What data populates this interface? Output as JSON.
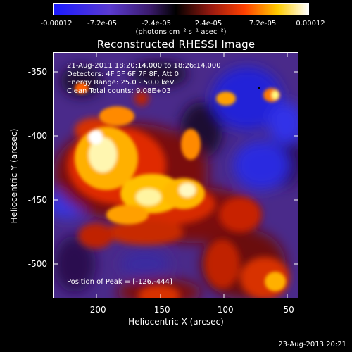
{
  "colorbar": {
    "ticks": [
      "-0.00012",
      "-7.2e-05",
      "-2.4e-05",
      "2.4e-05",
      "7.2e-05",
      "0.00012"
    ],
    "unit_label": "(photons cm⁻² s⁻¹ asec⁻²)",
    "colors": [
      "#1a1aff",
      "#6a2ab8",
      "#2a1050",
      "#000000",
      "#8a1a10",
      "#ff3a00",
      "#ffcc00",
      "#ffffff"
    ]
  },
  "title": "Reconstructed RHESSI Image",
  "info": {
    "line1": "21-Aug-2011 18:20:14.000 to 18:26:14.000",
    "line2": "Detectors: 4F 5F 6F 7F 8F, Att 0",
    "line3": "Energy Range: 25.0 - 50.0 keV",
    "line4": "Clean     Total counts: 9.08E+03"
  },
  "peak": "Position of Peak = [-126,-444]",
  "y_axis": {
    "label": "Heliocentric  Y (arcsec)",
    "ticks": [
      "-350",
      "-400",
      "-450",
      "-500"
    ]
  },
  "x_axis": {
    "label": "Heliocentric  X (arcsec)",
    "ticks": [
      "-200",
      "-150",
      "-100",
      "-50"
    ]
  },
  "footer": "23-Aug-2013 20:21"
}
